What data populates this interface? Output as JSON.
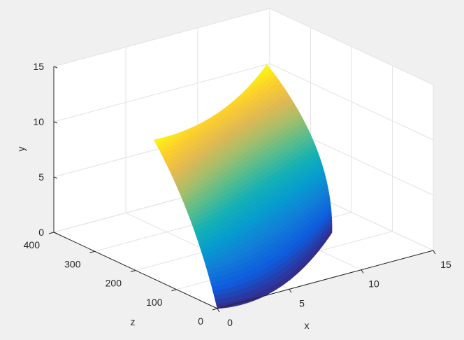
{
  "chart_data": {
    "type": "surface",
    "xlabel": "x",
    "ylabel": "y",
    "zlabel": "z",
    "xlim": [
      0,
      15
    ],
    "ylim": [
      0,
      15
    ],
    "zlim": [
      0,
      400
    ],
    "xticks": [
      "0",
      "5",
      "10",
      "15"
    ],
    "yticks": [
      "0",
      "5",
      "10",
      "15"
    ],
    "zticks": [
      "0",
      "100",
      "200",
      "300",
      "400"
    ],
    "grid": true,
    "colormap": "parula",
    "colormap_stops": [
      "#352a87",
      "#0f5cdd",
      "#127dd8",
      "#079ccf",
      "#15b1b4",
      "#59bd8c",
      "#a5be6b",
      "#e1b952",
      "#fcce2e",
      "#f9fb0e"
    ],
    "surface_control_grid": [
      [
        [
          0,
          0,
          0
        ],
        [
          4.75,
          15,
          0
        ],
        [
          12.22,
          150,
          0
        ]
      ],
      [
        [
          0.24,
          75,
          6.73
        ],
        [
          6.74,
          150,
          5.75
        ],
        [
          13.28,
          225,
          5.92
        ]
      ],
      [
        [
          0,
          155,
          12.58
        ],
        [
          6.34,
          225,
          11.5
        ],
        [
          11.97,
          300,
          12.7
        ]
      ]
    ],
    "surface_control_grid_order": "[x, z, y]"
  }
}
